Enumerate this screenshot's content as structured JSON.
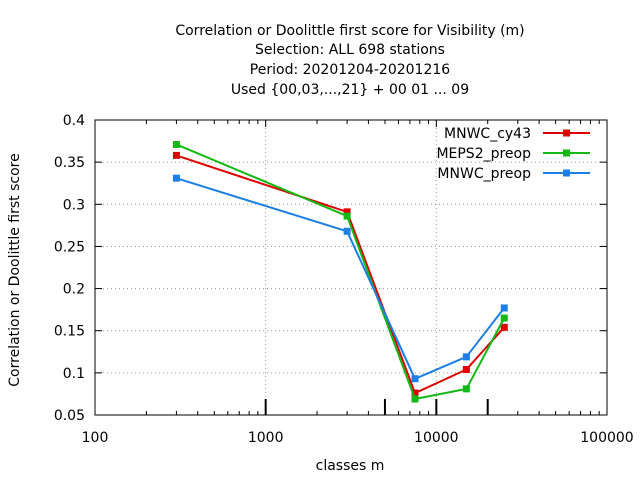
{
  "chart_data": {
    "type": "line",
    "title_lines": [
      "Correlation or Doolittle first score  for Visibility (m)",
      "Selection: ALL    698 stations",
      "Period: 20201204-20201216",
      "Used {00,03,...,21} + 00 01 ... 09"
    ],
    "xlabel": "classes m",
    "ylabel": "Correlation or Doolittle first score",
    "xscale": "log",
    "xlim": [
      100,
      100000
    ],
    "ylim": [
      0.05,
      0.4
    ],
    "xticks": [
      100,
      1000,
      10000,
      100000
    ],
    "xtick_labels": [
      "100",
      "1000",
      "10000",
      "100000"
    ],
    "yticks": [
      0.05,
      0.1,
      0.15,
      0.2,
      0.25,
      0.3,
      0.35,
      0.4
    ],
    "ytick_labels": [
      "0.05",
      "0.1",
      "0.15",
      "0.2",
      "0.25",
      "0.3",
      "0.35",
      "0.4"
    ],
    "class_boundaries": [
      1000,
      5000,
      10000,
      20000
    ],
    "grid": true,
    "legend_position": "top-right",
    "x": [
      300,
      3000,
      7500,
      15000,
      25000
    ],
    "series": [
      {
        "name": "MNWC_cy43",
        "color": "#e00000",
        "values": [
          0.358,
          0.291,
          0.076,
          0.104,
          0.154
        ]
      },
      {
        "name": "MEPS2_preop",
        "color": "#14b814",
        "values": [
          0.371,
          0.286,
          0.069,
          0.081,
          0.165
        ]
      },
      {
        "name": "MNWC_preop",
        "color": "#1c7fe6",
        "values": [
          0.331,
          0.268,
          0.093,
          0.119,
          0.177
        ]
      }
    ]
  }
}
